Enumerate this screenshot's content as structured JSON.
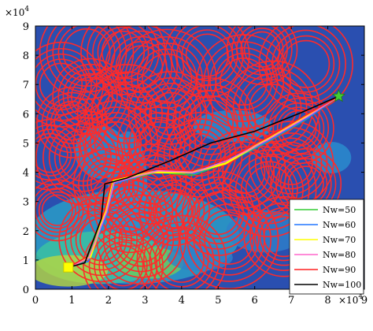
{
  "chart_data": {
    "type": "line",
    "title": "",
    "xlabel": "",
    "ylabel": "",
    "xlim": [
      0,
      90000
    ],
    "ylim": [
      0,
      90000
    ],
    "x_ticks": [
      0,
      10000,
      20000,
      30000,
      40000,
      50000,
      60000,
      70000,
      80000,
      90000
    ],
    "y_ticks": [
      0,
      10000,
      20000,
      30000,
      40000,
      50000,
      60000,
      70000,
      80000,
      90000
    ],
    "x_tick_labels": [
      "0",
      "1",
      "2",
      "3",
      "4",
      "5",
      "6",
      "7",
      "8",
      "9"
    ],
    "y_tick_labels": [
      "0",
      "1",
      "2",
      "3",
      "4",
      "5",
      "6",
      "7",
      "8",
      "9"
    ],
    "x_exponent_label": "×10",
    "x_exponent_power": "4",
    "y_exponent_label": "×10",
    "y_exponent_power": "4",
    "grid": false,
    "legend_position": "bottom-right",
    "start": {
      "x": 9000,
      "y": 7500,
      "marker": "square",
      "color": "#ffff00"
    },
    "goal": {
      "x": 83000,
      "y": 66000,
      "marker": "star",
      "color": "#44cc33"
    },
    "background": "terrain contour map (blue low, cyan/green/yellow high)",
    "threat_color": "#ff2a2a",
    "threats": [
      {
        "x": 14000,
        "y": 81000,
        "r": 4000
      },
      {
        "x": 24000,
        "y": 81000,
        "r": 3600
      },
      {
        "x": 47000,
        "y": 80000,
        "r": 3600
      },
      {
        "x": 62000,
        "y": 82000,
        "r": 3000
      },
      {
        "x": 74000,
        "y": 77000,
        "r": 4000
      },
      {
        "x": 29000,
        "y": 76000,
        "r": 3600
      },
      {
        "x": 36000,
        "y": 72000,
        "r": 4200
      },
      {
        "x": 57000,
        "y": 71000,
        "r": 4000
      },
      {
        "x": 7000,
        "y": 70000,
        "r": 3600
      },
      {
        "x": 65000,
        "y": 62000,
        "r": 4000
      },
      {
        "x": 15000,
        "y": 66000,
        "r": 3200
      },
      {
        "x": 25000,
        "y": 60000,
        "r": 4200
      },
      {
        "x": 37000,
        "y": 60000,
        "r": 3600
      },
      {
        "x": 48000,
        "y": 57000,
        "r": 3800
      },
      {
        "x": 72000,
        "y": 55000,
        "r": 3000
      },
      {
        "x": 10000,
        "y": 57000,
        "r": 3000
      },
      {
        "x": 22000,
        "y": 50000,
        "r": 3600
      },
      {
        "x": 34000,
        "y": 50000,
        "r": 3600
      },
      {
        "x": 45000,
        "y": 46000,
        "r": 3600
      },
      {
        "x": 13000,
        "y": 45000,
        "r": 4000
      },
      {
        "x": 4000,
        "y": 46000,
        "r": 3000
      },
      {
        "x": 70000,
        "y": 43000,
        "r": 3600
      },
      {
        "x": 57000,
        "y": 40000,
        "r": 3600
      },
      {
        "x": 64000,
        "y": 34000,
        "r": 4000
      },
      {
        "x": 74000,
        "y": 36000,
        "r": 3000
      },
      {
        "x": 32000,
        "y": 36000,
        "r": 3400
      },
      {
        "x": 20000,
        "y": 36000,
        "r": 3000
      },
      {
        "x": 26000,
        "y": 27000,
        "r": 3600
      },
      {
        "x": 38000,
        "y": 27000,
        "r": 3000
      },
      {
        "x": 50000,
        "y": 26000,
        "r": 3600
      },
      {
        "x": 6000,
        "y": 27000,
        "r": 2600
      },
      {
        "x": 18000,
        "y": 17000,
        "r": 3600
      },
      {
        "x": 29000,
        "y": 17000,
        "r": 3800
      },
      {
        "x": 40000,
        "y": 10000,
        "r": 3800
      },
      {
        "x": 24000,
        "y": 8000,
        "r": 3400
      },
      {
        "x": 53000,
        "y": 17000,
        "r": 4200
      },
      {
        "x": 68000,
        "y": 18000,
        "r": 3400
      }
    ],
    "series": [
      {
        "name": "Nw=50",
        "color": "#33cc33",
        "points": [
          [
            9000,
            7500
          ],
          [
            14000,
            10000
          ],
          [
            19000,
            26000
          ],
          [
            21000,
            36000
          ],
          [
            33000,
            40000
          ],
          [
            43000,
            39000
          ],
          [
            52000,
            43000
          ],
          [
            63000,
            50000
          ],
          [
            74000,
            58000
          ],
          [
            83000,
            66000
          ]
        ]
      },
      {
        "name": "Nw=60",
        "color": "#2277ff",
        "points": [
          [
            9000,
            7500
          ],
          [
            14500,
            9500
          ],
          [
            19500,
            25500
          ],
          [
            21500,
            36000
          ],
          [
            33000,
            40500
          ],
          [
            43500,
            39500
          ],
          [
            52500,
            43500
          ],
          [
            63500,
            50500
          ],
          [
            74500,
            58500
          ],
          [
            83000,
            66000
          ]
        ]
      },
      {
        "name": "Nw=70",
        "color": "#ffff00",
        "points": [
          [
            9000,
            7500
          ],
          [
            15000,
            11000
          ],
          [
            19000,
            26000
          ],
          [
            21000,
            37000
          ],
          [
            32000,
            40000
          ],
          [
            43000,
            40000
          ],
          [
            52000,
            43000
          ],
          [
            63000,
            51000
          ],
          [
            74000,
            59000
          ],
          [
            83000,
            66000
          ]
        ]
      },
      {
        "name": "Nw=80",
        "color": "#ff66cc",
        "points": [
          [
            9000,
            7500
          ],
          [
            14500,
            10500
          ],
          [
            19500,
            26500
          ],
          [
            21500,
            36500
          ],
          [
            33500,
            40500
          ],
          [
            43500,
            40000
          ],
          [
            52500,
            44000
          ],
          [
            63500,
            51000
          ],
          [
            74500,
            59000
          ],
          [
            83000,
            66000
          ]
        ]
      },
      {
        "name": "Nw=90",
        "color": "#ff2222",
        "points": [
          [
            9000,
            7500
          ],
          [
            14000,
            11000
          ],
          [
            19000,
            27000
          ],
          [
            21000,
            37500
          ],
          [
            33000,
            41000
          ],
          [
            43000,
            40500
          ],
          [
            52000,
            44500
          ],
          [
            63000,
            51500
          ],
          [
            74000,
            59500
          ],
          [
            83000,
            66000
          ]
        ]
      },
      {
        "name": "Nw=100",
        "color": "#000000",
        "points": [
          [
            9000,
            7500
          ],
          [
            13500,
            9000
          ],
          [
            18000,
            24000
          ],
          [
            19000,
            36000
          ],
          [
            25000,
            38000
          ],
          [
            37000,
            44000
          ],
          [
            48000,
            50000
          ],
          [
            60000,
            54000
          ],
          [
            72000,
            60000
          ],
          [
            83000,
            66000
          ]
        ]
      }
    ]
  }
}
